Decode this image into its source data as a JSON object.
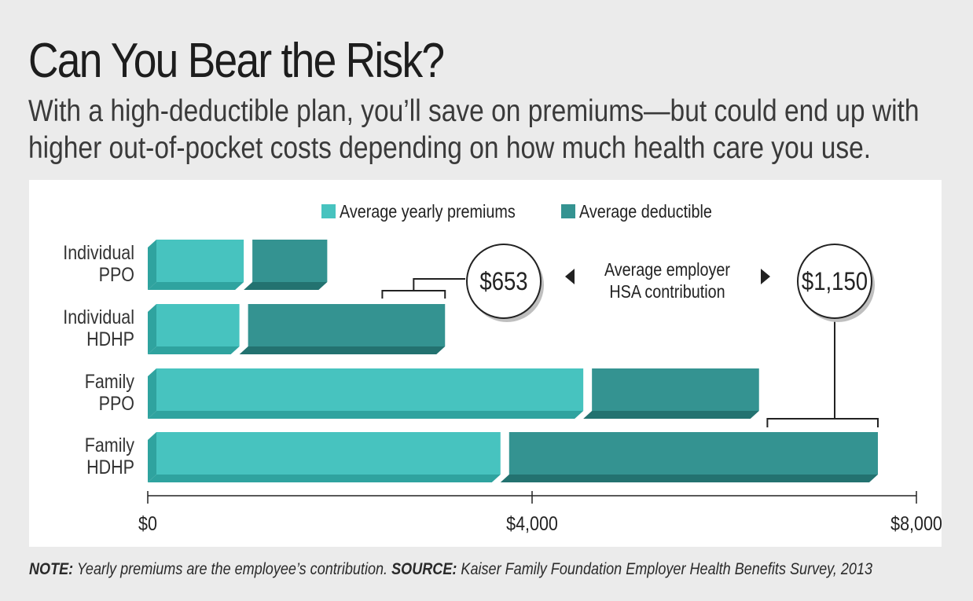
{
  "title": "Can You Bear the Risk?",
  "subtitle": "With a high-deductible plan, you’ll save on premiums—but could end up with higher out-of-pocket costs depending on how much health care you use.",
  "footnote": {
    "note_label": "NOTE:",
    "note_text": "Yearly premiums are the employee’s contribution.",
    "source_label": "SOURCE:",
    "source_text": "Kaiser Family Foundation Employer Health Benefits Survey, 2013"
  },
  "colors": {
    "premium": "#47c3bf",
    "premium_shade": "#2fa39f",
    "deductible": "#349391",
    "deductible_shade": "#237270",
    "axis": "#222222"
  },
  "chart_data": {
    "type": "bar",
    "orientation": "horizontal",
    "stacked": true,
    "categories": [
      [
        "Individual",
        "PPO"
      ],
      [
        "Individual",
        "HDHP"
      ],
      [
        "Family",
        "PPO"
      ],
      [
        "Family",
        "HDHP"
      ]
    ],
    "series": [
      {
        "name": "Average yearly premiums",
        "values": [
          999,
          954,
          4533,
          3671
        ]
      },
      {
        "name": "Average deductible",
        "values": [
          869,
          2140,
          1829,
          3928
        ]
      }
    ],
    "xlim": [
      0,
      8000
    ],
    "x_ticks": [
      0,
      4000,
      8000
    ],
    "x_tick_labels": [
      "$0",
      "$4,000",
      "$8,000"
    ],
    "legend_position": "top-center",
    "annotation": {
      "label_line1": "Average employer",
      "label_line2": "HSA contribution",
      "callouts": [
        {
          "category_index": 1,
          "value": 653,
          "label": "$653"
        },
        {
          "category_index": 3,
          "value": 1150,
          "label": "$1,150"
        }
      ]
    }
  }
}
